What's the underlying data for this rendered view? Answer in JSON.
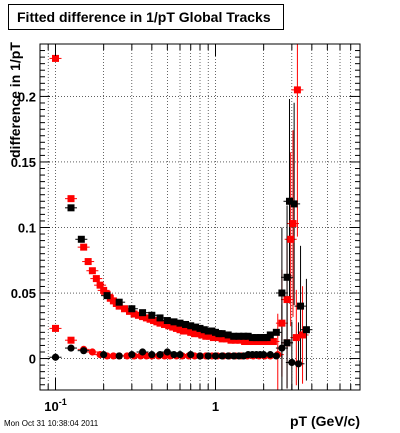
{
  "chart_data": {
    "type": "scatter",
    "title": "Fitted difference in 1/pT  Global Tracks",
    "xlabel": "pT (GeV/c)",
    "ylabel": "difference in 1/pT",
    "x_scale": "log",
    "xlim": [
      0.08,
      8.0
    ],
    "ylim": [
      -0.024,
      0.24
    ],
    "grid": true,
    "x_ticks": [
      {
        "value": 0.1,
        "base": "10",
        "exp": "-1"
      },
      {
        "value": 1,
        "label": "1"
      }
    ],
    "y_ticks": [
      {
        "value": 0,
        "label": "0"
      },
      {
        "value": 0.05,
        "label": "0.05"
      },
      {
        "value": 0.1,
        "label": "0.1"
      },
      {
        "value": 0.15,
        "label": "0.15"
      },
      {
        "value": 0.2,
        "label": "0.2"
      }
    ],
    "series": [
      {
        "color": "#ff0000",
        "x": [
          0.1,
          0.125,
          0.15,
          0.16,
          0.17,
          0.18,
          0.19,
          0.2,
          0.21,
          0.22,
          0.23,
          0.24,
          0.25,
          0.27,
          0.29,
          0.31,
          0.33,
          0.35,
          0.37,
          0.39,
          0.41,
          0.43,
          0.45,
          0.48,
          0.51,
          0.54,
          0.57,
          0.6,
          0.63,
          0.66,
          0.7,
          0.74,
          0.78,
          0.82,
          0.87,
          0.92,
          0.97,
          1.03,
          1.1,
          1.17,
          1.25,
          1.33,
          1.42,
          1.52,
          1.62,
          1.73,
          1.85,
          1.98,
          2.12,
          2.3,
          2.6,
          2.8,
          2.95,
          3.05,
          3.25,
          3.5
        ],
        "y": [
          0.229,
          0.122,
          0.085,
          0.074,
          0.067,
          0.061,
          0.056,
          0.052,
          0.049,
          0.046,
          0.044,
          0.042,
          0.04,
          0.038,
          0.036,
          0.034,
          0.033,
          0.032,
          0.031,
          0.03,
          0.029,
          0.028,
          0.027,
          0.026,
          0.025,
          0.024,
          0.023,
          0.022,
          0.021,
          0.021,
          0.02,
          0.019,
          0.019,
          0.018,
          0.017,
          0.017,
          0.016,
          0.016,
          0.015,
          0.015,
          0.014,
          0.014,
          0.014,
          0.013,
          0.013,
          0.013,
          0.013,
          0.013,
          0.013,
          0.013,
          0.027,
          0.045,
          0.091,
          0.103,
          0.205,
          0.018
        ]
      },
      {
        "color": "#ff0000",
        "x": [
          0.1,
          0.125,
          0.15,
          0.17,
          0.19,
          0.21,
          0.23,
          0.25,
          0.28,
          0.31,
          0.34,
          0.37,
          0.4,
          0.44,
          0.48,
          0.52,
          0.57,
          0.62,
          0.68,
          0.74,
          0.8,
          0.87,
          0.95,
          1.03,
          1.12,
          1.22,
          1.33,
          1.45,
          1.58,
          1.72,
          1.87,
          2.03,
          2.2,
          2.45,
          2.8,
          3.2
        ],
        "y": [
          0.023,
          0.014,
          0.007,
          0.005,
          0.003,
          0.002,
          0.002,
          0.002,
          0.002,
          0.002,
          0.002,
          0.002,
          0.002,
          0.002,
          0.002,
          0.002,
          0.002,
          0.002,
          0.002,
          0.002,
          0.002,
          0.002,
          0.002,
          0.002,
          0.002,
          0.002,
          0.002,
          0.002,
          0.002,
          0.002,
          0.002,
          0.002,
          0.002,
          0.003,
          0.012,
          0.016
        ]
      },
      {
        "color": "#000000",
        "x": [
          0.125,
          0.145,
          0.21,
          0.25,
          0.3,
          0.35,
          0.4,
          0.45,
          0.5,
          0.55,
          0.6,
          0.65,
          0.7,
          0.75,
          0.8,
          0.85,
          0.9,
          0.95,
          1.0,
          1.05,
          1.1,
          1.2,
          1.3,
          1.4,
          1.5,
          1.6,
          1.7,
          1.8,
          1.9,
          2.0,
          2.1,
          2.2,
          2.4,
          2.6,
          2.8,
          2.9,
          3.1,
          3.4,
          3.7
        ],
        "y": [
          0.115,
          0.091,
          0.048,
          0.043,
          0.038,
          0.035,
          0.033,
          0.031,
          0.029,
          0.028,
          0.027,
          0.026,
          0.025,
          0.024,
          0.023,
          0.022,
          0.021,
          0.021,
          0.02,
          0.019,
          0.019,
          0.018,
          0.017,
          0.017,
          0.017,
          0.017,
          0.016,
          0.016,
          0.016,
          0.016,
          0.016,
          0.018,
          0.02,
          0.05,
          0.062,
          0.12,
          0.118,
          0.04,
          0.022
        ]
      },
      {
        "color": "#000000",
        "x": [
          0.1,
          0.125,
          0.15,
          0.2,
          0.25,
          0.3,
          0.35,
          0.4,
          0.45,
          0.5,
          0.55,
          0.6,
          0.7,
          0.8,
          0.9,
          1.0,
          1.1,
          1.2,
          1.3,
          1.4,
          1.5,
          1.6,
          1.7,
          1.8,
          1.9,
          2.0,
          2.2,
          2.4,
          2.6,
          2.8,
          3.0,
          3.3
        ],
        "y": [
          0.001,
          0.008,
          0.006,
          0.003,
          0.002,
          0.003,
          0.005,
          0.003,
          0.003,
          0.005,
          0.003,
          0.003,
          0.003,
          0.002,
          0.002,
          0.002,
          0.002,
          0.002,
          0.002,
          0.002,
          0.002,
          0.003,
          0.003,
          0.003,
          0.003,
          0.003,
          0.003,
          0.002,
          0.008,
          0.012,
          -0.003,
          -0.004
        ]
      }
    ]
  },
  "timestamp": "Mon Oct 31 10:38:04 2011"
}
